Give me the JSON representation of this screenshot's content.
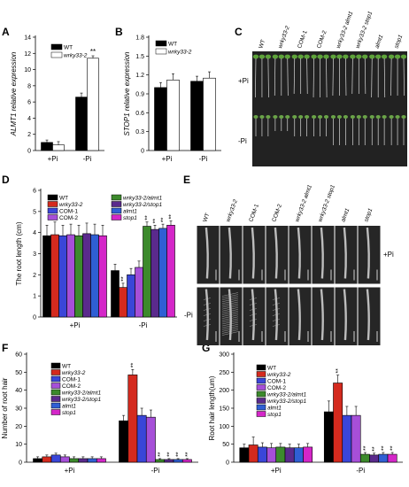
{
  "panel_letters": [
    "A",
    "B",
    "C",
    "D",
    "E",
    "F",
    "G"
  ],
  "colors": {
    "wt": "#000000",
    "wrky33": "#ffffff",
    "wrky33_2": "#d42a1e",
    "com1": "#3a46d8",
    "com2": "#a64fd8",
    "wrky_almt1": "#3c8a2c",
    "wrky_stop1": "#5a2a8c",
    "almt1": "#2f5fd4",
    "stop1": "#d426c8"
  },
  "genotypes": [
    "WT",
    "wrky33-2",
    "COM-1",
    "COM-2",
    "wrky33-2/almt1",
    "wrky33-2/stop1",
    "almt1",
    "stop1"
  ],
  "photo_labels": [
    "WT",
    "wrky33-2",
    "COM-1",
    "COM-2",
    "wrky33-2 almt1",
    "wrky33-2 stop1",
    "almt1",
    "stop1"
  ],
  "photo_rows": [
    "+Pi",
    "-Pi"
  ],
  "chart_data": [
    {
      "panel": "A",
      "type": "bar",
      "categories": [
        "+Pi",
        "-Pi"
      ],
      "ylabel": "ALMT1 relative expression",
      "ylim": [
        0,
        14
      ],
      "yticks": [
        0,
        2,
        4,
        6,
        8,
        10,
        12,
        14
      ],
      "legend": "top-left",
      "series": [
        {
          "name": "WT",
          "values": [
            1.0,
            6.6
          ],
          "err": [
            0.3,
            0.5
          ]
        },
        {
          "name": "wrky33-2",
          "values": [
            0.7,
            11.4
          ],
          "err": [
            0.4,
            0.3
          ]
        }
      ],
      "annotations": [
        {
          "category": 1,
          "series": 1,
          "text": "**"
        }
      ]
    },
    {
      "panel": "B",
      "type": "bar",
      "categories": [
        "+Pi",
        "-Pi"
      ],
      "ylabel": "STOP1 relative expression",
      "ylim": [
        0,
        1.8
      ],
      "yticks": [
        0,
        0.3,
        0.6,
        0.9,
        1.2,
        1.5,
        1.8
      ],
      "legend": "top-left",
      "series": [
        {
          "name": "WT",
          "values": [
            1.0,
            1.1
          ],
          "err": [
            0.08,
            0.08
          ]
        },
        {
          "name": "wrky33-2",
          "values": [
            1.12,
            1.15
          ],
          "err": [
            0.1,
            0.1
          ]
        }
      ]
    },
    {
      "panel": "D",
      "type": "bar",
      "categories": [
        "+Pi",
        "-Pi"
      ],
      "ylabel": "The root length (cm)",
      "ylim": [
        0,
        6
      ],
      "yticks": [
        0,
        1,
        2,
        3,
        4,
        5,
        6
      ],
      "legend": "top",
      "series": [
        {
          "name": "WT",
          "values": [
            3.85,
            2.2
          ],
          "err": [
            0.5,
            0.3
          ]
        },
        {
          "name": "wrky33-2",
          "values": [
            3.9,
            1.4
          ],
          "err": [
            0.6,
            0.2
          ]
        },
        {
          "name": "COM-1",
          "values": [
            3.85,
            2.0
          ],
          "err": [
            0.5,
            0.3
          ]
        },
        {
          "name": "COM-2",
          "values": [
            3.9,
            2.35
          ],
          "err": [
            0.5,
            0.3
          ]
        },
        {
          "name": "wrky33-2/almt1",
          "values": [
            3.85,
            4.3
          ],
          "err": [
            0.5,
            0.2
          ]
        },
        {
          "name": "wrky33-2/stop1",
          "values": [
            3.95,
            4.15
          ],
          "err": [
            0.5,
            0.2
          ]
        },
        {
          "name": "almt1",
          "values": [
            3.9,
            4.2
          ],
          "err": [
            0.5,
            0.2
          ]
        },
        {
          "name": "stop1",
          "values": [
            3.85,
            4.35
          ],
          "err": [
            0.5,
            0.2
          ]
        }
      ],
      "annotations": [
        {
          "category": 1,
          "series": 1,
          "text": "**"
        },
        {
          "category": 1,
          "series": 4,
          "text": "**"
        },
        {
          "category": 1,
          "series": 5,
          "text": "**"
        },
        {
          "category": 1,
          "series": 6,
          "text": "**"
        },
        {
          "category": 1,
          "series": 7,
          "text": "**"
        }
      ]
    },
    {
      "panel": "F",
      "type": "bar",
      "categories": [
        "+Pi",
        "-Pi"
      ],
      "ylabel": "Number of root hair",
      "ylim": [
        0,
        60
      ],
      "yticks": [
        0,
        10,
        20,
        30,
        40,
        50,
        60
      ],
      "legend": "top-left",
      "series": [
        {
          "name": "WT",
          "values": [
            2,
            23
          ],
          "err": [
            1,
            3
          ]
        },
        {
          "name": "wrky33-2",
          "values": [
            3,
            48.5
          ],
          "err": [
            1,
            3
          ]
        },
        {
          "name": "COM-1",
          "values": [
            4,
            26
          ],
          "err": [
            1,
            4
          ]
        },
        {
          "name": "COM-2",
          "values": [
            3,
            25
          ],
          "err": [
            1,
            4
          ]
        },
        {
          "name": "wrky33-2/almt1",
          "values": [
            2,
            1.5
          ],
          "err": [
            1,
            0.5
          ]
        },
        {
          "name": "wrky33-2/stop1",
          "values": [
            2,
            1.5
          ],
          "err": [
            1,
            0.5
          ]
        },
        {
          "name": "almt1",
          "values": [
            2,
            1.5
          ],
          "err": [
            1,
            0.5
          ]
        },
        {
          "name": "stop1",
          "values": [
            2,
            1.5
          ],
          "err": [
            1,
            0.5
          ]
        }
      ],
      "annotations": [
        {
          "category": 1,
          "series": 1,
          "text": "**"
        },
        {
          "category": 1,
          "series": 4,
          "text": "**"
        },
        {
          "category": 1,
          "series": 5,
          "text": "**"
        },
        {
          "category": 1,
          "series": 6,
          "text": "**"
        },
        {
          "category": 1,
          "series": 7,
          "text": "**"
        }
      ]
    },
    {
      "panel": "G",
      "type": "bar",
      "categories": [
        "+Pi",
        "-Pi"
      ],
      "ylabel": "Root hair length(um)",
      "ylim": [
        0,
        300
      ],
      "yticks": [
        0,
        50,
        100,
        150,
        200,
        250,
        300
      ],
      "legend": "top-left",
      "series": [
        {
          "name": "WT",
          "values": [
            40,
            140
          ],
          "err": [
            10,
            30
          ]
        },
        {
          "name": "wrky33-2",
          "values": [
            48,
            220
          ],
          "err": [
            22,
            22
          ]
        },
        {
          "name": "COM-1",
          "values": [
            42,
            130
          ],
          "err": [
            12,
            25
          ]
        },
        {
          "name": "COM-2",
          "values": [
            40,
            130
          ],
          "err": [
            12,
            25
          ]
        },
        {
          "name": "wrky33-2/almt1",
          "values": [
            42,
            22
          ],
          "err": [
            10,
            5
          ]
        },
        {
          "name": "wrky33-2/stop1",
          "values": [
            40,
            20
          ],
          "err": [
            10,
            5
          ]
        },
        {
          "name": "almt1",
          "values": [
            40,
            22
          ],
          "err": [
            10,
            5
          ]
        },
        {
          "name": "stop1",
          "values": [
            42,
            22
          ],
          "err": [
            10,
            5
          ]
        }
      ],
      "annotations": [
        {
          "category": 1,
          "series": 1,
          "text": "**"
        },
        {
          "category": 1,
          "series": 4,
          "text": "**"
        },
        {
          "category": 1,
          "series": 5,
          "text": "**"
        },
        {
          "category": 1,
          "series": 6,
          "text": "**"
        },
        {
          "category": 1,
          "series": 7,
          "text": "**"
        }
      ]
    }
  ]
}
